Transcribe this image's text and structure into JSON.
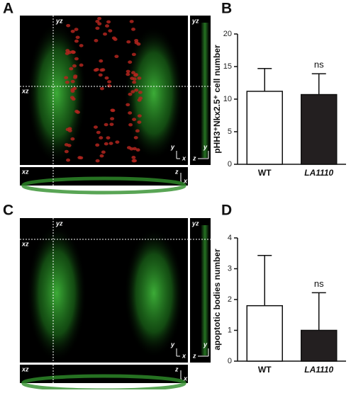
{
  "panels": [
    {
      "letter": "A",
      "labels": [
        "yz",
        "xz",
        "yz",
        "xz",
        "y",
        "x",
        "y",
        "z",
        "z",
        "x"
      ]
    },
    {
      "letter": "B"
    },
    {
      "letter": "C",
      "labels": [
        "yz",
        "xz",
        "yz",
        "xz",
        "y",
        "x",
        "y",
        "z",
        "z",
        "x"
      ]
    },
    {
      "letter": "D"
    }
  ],
  "chart_data": [
    {
      "type": "bar",
      "y_label": "pHH3⁺Nkx2.5⁺ cell number",
      "categories": [
        "WT",
        "LA1110"
      ],
      "values": [
        11.2,
        10.7
      ],
      "errors": [
        3.5,
        3.2
      ],
      "colors": [
        "#ffffff",
        "#231f20"
      ],
      "ylim": [
        0,
        20
      ],
      "yticks": [
        0,
        5,
        10,
        15,
        20
      ],
      "annotation": "ns"
    },
    {
      "type": "bar",
      "y_label": "apoptotic bodies number",
      "categories": [
        "WT",
        "LA1110"
      ],
      "values": [
        1.8,
        1.0
      ],
      "errors": [
        1.63,
        1.22
      ],
      "colors": [
        "#ffffff",
        "#231f20"
      ],
      "ylim": [
        0,
        4
      ],
      "yticks": [
        0,
        1,
        2,
        3,
        4
      ],
      "annotation": "ns"
    }
  ]
}
